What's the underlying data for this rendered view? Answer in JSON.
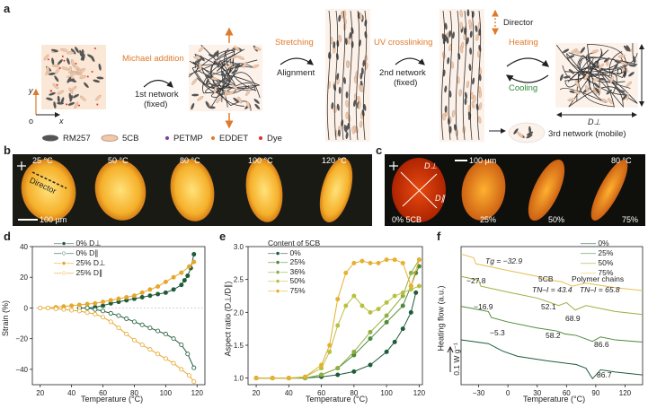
{
  "panel_a": {
    "label": "a",
    "steps": {
      "michael": "Michael addition",
      "net1_l1": "1st network",
      "net1_l2": "(fixed)",
      "stretching": "Stretching",
      "alignment": "Alignment",
      "uv": "UV crosslinking",
      "net2_l1": "2nd network",
      "net2_l2": "(fixed)",
      "director": "Director",
      "heating": "Heating",
      "cooling": "Cooling",
      "net3": "3rd network (mobile)",
      "d_par": "D∥",
      "d_perp": "D⊥"
    },
    "axes": {
      "y": "y",
      "x": "x",
      "o": "o"
    },
    "legend": [
      {
        "label": "RM257",
        "color": "#555555"
      },
      {
        "label": "5CB",
        "color": "#f2c9a8"
      },
      {
        "label": "PETMP",
        "color": "#7b3fa0"
      },
      {
        "label": "EDDET",
        "color": "#e07a2a"
      },
      {
        "label": "Dye",
        "color": "#e0302a"
      }
    ]
  },
  "panel_b": {
    "label": "b",
    "temps": [
      "25 °C",
      "50 °C",
      "80 °C",
      "100 °C",
      "120 °C"
    ],
    "director": "Director",
    "scale": "100 µm"
  },
  "panel_c": {
    "label": "c",
    "scale": "100 µm",
    "temp": "80 °C",
    "d_perp": "D⊥",
    "d_par": "D∥",
    "contents": [
      "0% 5CB",
      "25%",
      "50%",
      "75%"
    ]
  },
  "panel_d": {
    "label": "d",
    "ylabel": "Strain (%)",
    "xlabel": "Temperature (°C)",
    "xticks": [
      "20",
      "40",
      "60",
      "80",
      "100",
      "120"
    ],
    "yticks": [
      "40",
      "20",
      "0",
      "−20",
      "−40"
    ],
    "legend": [
      "0% D⊥",
      "0% D∥",
      "25% D⊥",
      "25% D∥"
    ]
  },
  "panel_e": {
    "label": "e",
    "ylabel": "Aspect ratio (D⊥/D∥)",
    "xlabel": "Temperature (°C)",
    "xticks": [
      "20",
      "40",
      "60",
      "80",
      "100",
      "120"
    ],
    "yticks": [
      "1.0",
      "1.5",
      "2.0",
      "2.5",
      "3.0"
    ],
    "legend_title": "Content of 5CB",
    "legend": [
      "0%",
      "25%",
      "36%",
      "50%",
      "75%"
    ]
  },
  "panel_f": {
    "label": "f",
    "ylabel": "Heating flow (a.u.)",
    "xlabel": "Temperature (°C)",
    "xticks": [
      "−30",
      "0",
      "30",
      "60",
      "90",
      "120"
    ],
    "scalebar": "0.1 W g⁻¹",
    "legend": [
      "0%",
      "25%",
      "50%",
      "75%"
    ],
    "ann": {
      "tg": "Tg = −32.9",
      "cb": "5CB",
      "pc": "Polymer chains",
      "tni1": "TN–I = 43.4",
      "tni2": "TN–I = 65.8",
      "v278": "−27.8",
      "v169": "−16.9",
      "v53": "−5.3",
      "v521": "52.1",
      "v689": "68.9",
      "v582": "58.2",
      "v866": "86.6",
      "v867": "86.7"
    }
  },
  "chart_data": [
    {
      "type": "scatter",
      "panel": "d",
      "xlabel": "Temperature (°C)",
      "ylabel": "Strain (%)",
      "xlim": [
        15,
        125
      ],
      "ylim": [
        -50,
        40
      ],
      "series": [
        {
          "name": "0% D⊥",
          "color": "#1f5c3a",
          "filled": true,
          "x": [
            45,
            50,
            55,
            60,
            65,
            70,
            75,
            80,
            85,
            90,
            95,
            100,
            105,
            110,
            112,
            114,
            116,
            118
          ],
          "y": [
            0,
            0,
            0.5,
            1.5,
            3,
            4,
            5,
            6,
            7,
            8,
            9,
            10,
            12,
            15,
            18,
            21,
            26,
            35
          ]
        },
        {
          "name": "0% D∥",
          "color": "#1f5c3a",
          "filled": false,
          "x": [
            45,
            50,
            55,
            60,
            65,
            70,
            75,
            80,
            85,
            90,
            95,
            100,
            105,
            110,
            114,
            118
          ],
          "y": [
            0,
            0,
            -1,
            -2,
            -3.5,
            -5,
            -7,
            -9,
            -11,
            -13,
            -15,
            -17,
            -20,
            -24,
            -30,
            -39
          ]
        },
        {
          "name": "25% D⊥",
          "color": "#e6a72a",
          "filled": true,
          "x": [
            20,
            25,
            30,
            35,
            40,
            45,
            50,
            55,
            60,
            65,
            70,
            75,
            80,
            85,
            90,
            95,
            100,
            105,
            110,
            115,
            118
          ],
          "y": [
            0,
            0,
            0.5,
            1,
            1.5,
            2,
            2.5,
            3,
            4,
            5,
            6,
            7,
            8,
            10,
            12,
            14,
            17,
            20,
            23,
            27,
            30
          ]
        },
        {
          "name": "25% D∥",
          "color": "#e6a72a",
          "filled": false,
          "x": [
            20,
            25,
            30,
            35,
            40,
            45,
            50,
            55,
            60,
            65,
            70,
            75,
            80,
            85,
            90,
            95,
            100,
            105,
            110,
            115,
            118
          ],
          "y": [
            0,
            0,
            -0.5,
            -1,
            -1.5,
            -2,
            -3,
            -4,
            -6,
            -9,
            -13,
            -17,
            -21,
            -24,
            -27,
            -30,
            -33,
            -36,
            -40,
            -44,
            -48
          ]
        }
      ]
    },
    {
      "type": "line",
      "panel": "e",
      "xlabel": "Temperature (°C)",
      "ylabel": "Aspect ratio (D⊥/D∥)",
      "xlim": [
        15,
        122
      ],
      "ylim": [
        0.9,
        3.0
      ],
      "series": [
        {
          "name": "0%",
          "color": "#1f5c3a",
          "x": [
            20,
            30,
            40,
            50,
            60,
            70,
            80,
            90,
            100,
            105,
            110,
            115,
            118
          ],
          "y": [
            1.0,
            1.0,
            1.0,
            1.0,
            1.02,
            1.05,
            1.1,
            1.2,
            1.4,
            1.55,
            1.75,
            2.0,
            2.3
          ]
        },
        {
          "name": "25%",
          "color": "#4f8a3a",
          "x": [
            20,
            30,
            40,
            50,
            60,
            70,
            80,
            90,
            100,
            110,
            115,
            118,
            120
          ],
          "y": [
            1.0,
            1.0,
            1.0,
            1.0,
            1.05,
            1.15,
            1.35,
            1.6,
            1.85,
            2.1,
            2.4,
            2.6,
            2.7
          ]
        },
        {
          "name": "36%",
          "color": "#8fb040",
          "x": [
            20,
            30,
            40,
            50,
            60,
            70,
            80,
            90,
            100,
            110,
            115,
            120
          ],
          "y": [
            1.0,
            1.0,
            1.0,
            1.0,
            1.05,
            1.15,
            1.4,
            1.7,
            1.95,
            2.25,
            2.6,
            2.8
          ]
        },
        {
          "name": "50%",
          "color": "#b8c040",
          "x": [
            20,
            30,
            40,
            50,
            60,
            65,
            70,
            75,
            80,
            85,
            90,
            95,
            100,
            105,
            110,
            115,
            120
          ],
          "y": [
            1.0,
            1.0,
            1.0,
            1.02,
            1.15,
            1.4,
            1.8,
            2.1,
            2.25,
            2.1,
            2.0,
            2.05,
            2.15,
            2.25,
            2.3,
            2.35,
            2.4
          ]
        },
        {
          "name": "75%",
          "color": "#e6b030",
          "x": [
            20,
            30,
            40,
            50,
            60,
            65,
            70,
            75,
            80,
            85,
            90,
            95,
            100,
            105,
            110,
            115,
            120
          ],
          "y": [
            1.0,
            1.0,
            1.0,
            1.02,
            1.2,
            1.5,
            2.2,
            2.6,
            2.75,
            2.78,
            2.75,
            2.75,
            2.8,
            2.8,
            2.75,
            2.4,
            2.8
          ]
        }
      ]
    },
    {
      "type": "line",
      "panel": "f",
      "xlabel": "Temperature (°C)",
      "ylabel": "Heating flow (a.u.)",
      "xlim": [
        -48,
        138
      ],
      "series": [
        {
          "name": "0%",
          "color": "#1f5c3a",
          "x": [
            -48,
            -20,
            -5.3,
            10,
            40,
            70,
            80,
            86.7,
            95,
            110,
            138
          ],
          "y": [
            0.1,
            0.05,
            -0.05,
            -0.12,
            -0.18,
            -0.23,
            -0.28,
            -0.42,
            -0.3,
            -0.33,
            -0.37
          ]
        },
        {
          "name": "25%",
          "color": "#4f8a3a",
          "x": [
            -48,
            -20,
            -16.9,
            0,
            30,
            50,
            58.2,
            70,
            86.6,
            95,
            110,
            138
          ],
          "y": [
            0.55,
            0.48,
            0.4,
            0.34,
            0.26,
            0.22,
            0.18,
            0.16,
            0.08,
            0.14,
            0.1,
            0.07
          ]
        },
        {
          "name": "50%",
          "color": "#9ab040",
          "x": [
            -48,
            -30,
            -27.8,
            0,
            30,
            52.1,
            60,
            68.9,
            80,
            110,
            138
          ],
          "y": [
            0.95,
            0.9,
            0.82,
            0.74,
            0.66,
            0.56,
            0.6,
            0.5,
            0.56,
            0.48,
            0.44
          ]
        },
        {
          "name": "75%",
          "color": "#e6c050",
          "x": [
            -48,
            -35,
            -32.9,
            0,
            30,
            43.4,
            55,
            65.8,
            80,
            110,
            138
          ],
          "y": [
            1.25,
            1.2,
            1.12,
            1.03,
            0.95,
            0.9,
            0.88,
            0.82,
            0.86,
            0.8,
            0.76
          ]
        }
      ]
    }
  ]
}
